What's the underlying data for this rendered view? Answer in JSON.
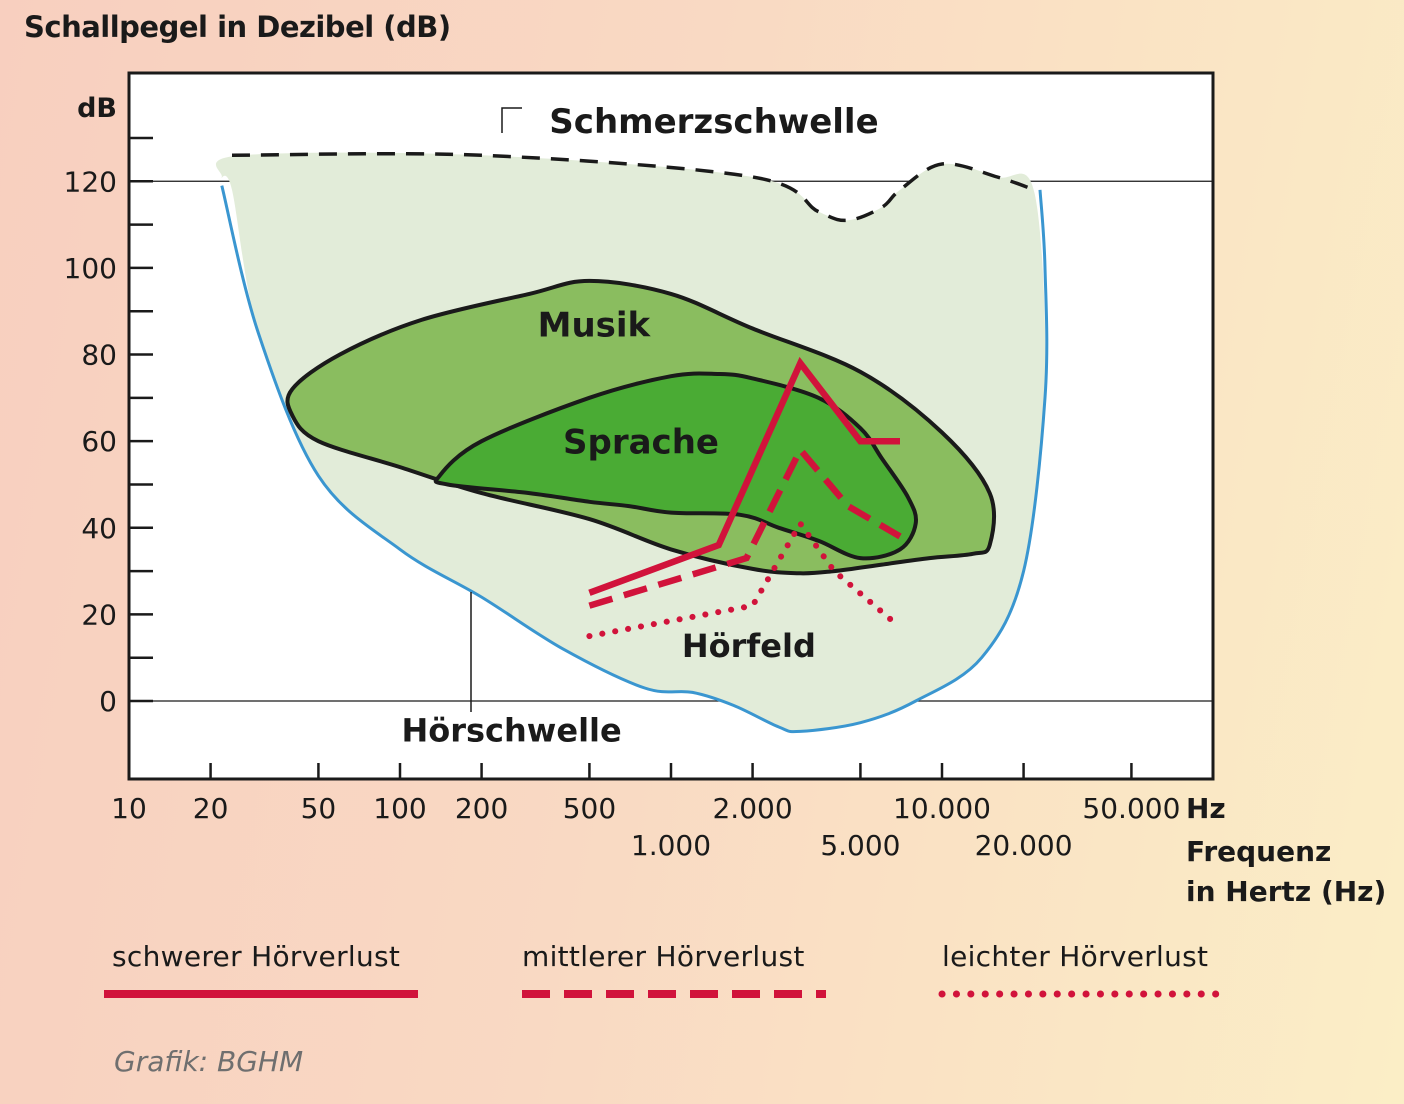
{
  "title": "Schallpegel in Dezibel (dB)",
  "credit": "Grafik: BGHM",
  "colors": {
    "area_hoerfeld": "#e2ecd9",
    "area_musik": "#8abd5f",
    "area_sprache": "#4aab34",
    "threshold_line": "#3a96d0",
    "hearing_loss": "#d1133b",
    "outline": "#1a1a1a"
  },
  "chart_data": {
    "type": "line",
    "xscale": "log",
    "xlim": [
      10,
      100000
    ],
    "ylim": [
      -18,
      145
    ],
    "grid": {
      "horizontal_lines_at": [
        0,
        120
      ]
    },
    "y_unit_label": "dB",
    "y_ticks": [
      0,
      20,
      40,
      60,
      80,
      100,
      120
    ],
    "y_minor_ticks": [
      10,
      30,
      50,
      70,
      90,
      110,
      130
    ],
    "x_ticks": [
      10,
      20,
      50,
      100,
      200,
      500,
      1000,
      2000,
      5000,
      10000,
      20000,
      50000
    ],
    "x_tick_labels": [
      "10",
      "20",
      "50",
      "100",
      "200",
      "500",
      "1.000",
      "2.000",
      "5.000",
      "10.000",
      "20.000",
      "50.000"
    ],
    "x_unit_label": "Hz",
    "x_title": [
      "Frequenz",
      "in Hertz (Hz)"
    ],
    "areas": [
      {
        "name": "Hörfeld",
        "points": [
          [
            24,
            118
          ],
          [
            22,
            121
          ],
          [
            26,
            126
          ],
          [
            200,
            126
          ],
          [
            2000,
            121
          ],
          [
            3500,
            113
          ],
          [
            4500,
            111
          ],
          [
            6000,
            114
          ],
          [
            7000,
            118
          ],
          [
            10000,
            124
          ],
          [
            16000,
            121
          ],
          [
            22000,
            117
          ],
          [
            24000,
            70
          ],
          [
            20000,
            30
          ],
          [
            14000,
            10
          ],
          [
            8000,
            0
          ],
          [
            5000,
            -5
          ],
          [
            3000,
            -7
          ],
          [
            2500,
            -6
          ],
          [
            1700,
            -1
          ],
          [
            1200,
            2
          ],
          [
            800,
            3
          ],
          [
            400,
            12
          ],
          [
            200,
            24
          ],
          [
            100,
            35
          ],
          [
            50,
            52
          ],
          [
            30,
            85
          ]
        ]
      },
      {
        "name": "Musik",
        "points": [
          [
            40,
            72
          ],
          [
            60,
            80
          ],
          [
            120,
            88
          ],
          [
            300,
            94
          ],
          [
            500,
            97
          ],
          [
            1000,
            94
          ],
          [
            2000,
            86
          ],
          [
            5000,
            76
          ],
          [
            10000,
            62
          ],
          [
            15000,
            48
          ],
          [
            15000,
            36
          ],
          [
            13000,
            34
          ],
          [
            9000,
            33
          ],
          [
            6000,
            31.5
          ],
          [
            4000,
            30
          ],
          [
            3000,
            29.5
          ],
          [
            2000,
            30.5
          ],
          [
            1000,
            35
          ],
          [
            500,
            42
          ],
          [
            200,
            48
          ],
          [
            100,
            54
          ],
          [
            50,
            60
          ],
          [
            40,
            66
          ]
        ]
      },
      {
        "name": "Sprache",
        "points": [
          [
            140,
            52
          ],
          [
            200,
            60
          ],
          [
            500,
            70
          ],
          [
            1000,
            75
          ],
          [
            1500,
            75.5
          ],
          [
            2000,
            74.5
          ],
          [
            3500,
            70
          ],
          [
            5000,
            63
          ],
          [
            6000,
            56
          ],
          [
            7500,
            47
          ],
          [
            8000,
            41
          ],
          [
            7000,
            35
          ],
          [
            5000,
            33
          ],
          [
            3500,
            37
          ],
          [
            2500,
            40
          ],
          [
            1800,
            43
          ],
          [
            1000,
            43.5
          ],
          [
            700,
            45
          ],
          [
            500,
            46
          ],
          [
            300,
            48
          ],
          [
            150,
            50
          ]
        ]
      }
    ],
    "threshold_lines": [
      {
        "name": "Schmerzschwelle",
        "style": "dashed",
        "points": [
          [
            24,
            126
          ],
          [
            200,
            126
          ],
          [
            2000,
            121
          ],
          [
            3500,
            113
          ],
          [
            4500,
            111
          ],
          [
            6000,
            114
          ],
          [
            7000,
            118
          ],
          [
            10000,
            124
          ],
          [
            16000,
            121
          ],
          [
            22000,
            118
          ]
        ]
      },
      {
        "name": "Hörschwelle",
        "style": "solid",
        "points": [
          [
            22,
            119
          ],
          [
            30,
            85
          ],
          [
            50,
            52
          ],
          [
            100,
            35
          ],
          [
            200,
            24
          ],
          [
            400,
            12
          ],
          [
            800,
            3
          ],
          [
            1200,
            2
          ],
          [
            1700,
            -1
          ],
          [
            2500,
            -6
          ],
          [
            3000,
            -7
          ],
          [
            5000,
            -5
          ],
          [
            8000,
            0
          ],
          [
            14000,
            10
          ],
          [
            20000,
            30
          ],
          [
            24000,
            70
          ],
          [
            24000,
            100
          ],
          [
            23000,
            118
          ]
        ]
      }
    ],
    "series": [
      {
        "name": "schwerer Hörverlust",
        "style": "solid",
        "x": [
          500,
          1500,
          3000,
          5000,
          7000
        ],
        "y": [
          25,
          36,
          78,
          60,
          60
        ]
      },
      {
        "name": "mittlerer Hörverlust",
        "style": "dashed",
        "x": [
          500,
          1900,
          3000,
          4500,
          7000
        ],
        "y": [
          22,
          33,
          58,
          45,
          38
        ]
      },
      {
        "name": "leichter Hörverlust",
        "style": "dotted",
        "x": [
          500,
          2000,
          3000,
          4000,
          7000
        ],
        "y": [
          15,
          22,
          41,
          30,
          17
        ]
      }
    ],
    "annotations": [
      {
        "text": "Schmerzschwelle",
        "x": 300,
        "y": 133
      },
      {
        "text": "Hörschwelle",
        "x": 200,
        "y": -7
      },
      {
        "text": "Musik",
        "x": 590,
        "y": 86
      },
      {
        "text": "Sprache",
        "x": 1000,
        "y": 59
      },
      {
        "text": "Hörfeld",
        "x": 2500,
        "y": 12
      }
    ]
  }
}
